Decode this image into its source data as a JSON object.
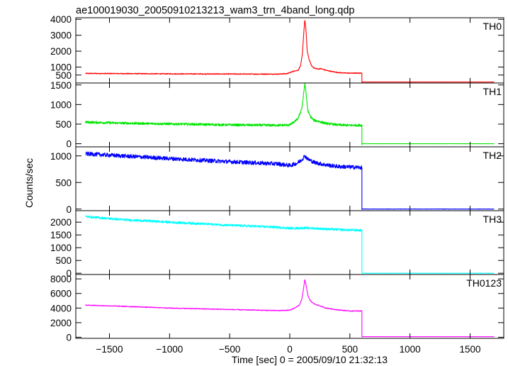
{
  "chart_data": {
    "type": "line",
    "title": "ae100019030_20050910213213_wam3_trn_4band_long.qdp",
    "xlabel": "Time [sec] 0 = 2005/09/10 21:32:13",
    "ylabel": "Counts/sec",
    "xlim": [
      -1780,
      1780
    ],
    "xticks": [
      -1500,
      -1000,
      -500,
      0,
      500,
      1000,
      1500
    ],
    "xtick_labels": [
      "−1500",
      "−1000",
      "−500",
      "0",
      "500",
      "1000",
      "1500"
    ],
    "x_range_of_data": [
      -1700,
      1700
    ],
    "grid": false,
    "panels": [
      {
        "name": "TH0",
        "color": "#ff0000",
        "ylim": [
          0,
          4100
        ],
        "yticks": [
          500,
          1000,
          2000,
          3000,
          4000
        ],
        "ytick_labels": [
          "500",
          "1000",
          "2000",
          "3000",
          "4000"
        ],
        "noise": 28,
        "series": [
          [
            -1700,
            600
          ],
          [
            -1400,
            590
          ],
          [
            -1000,
            575
          ],
          [
            -500,
            565
          ],
          [
            -100,
            560
          ],
          [
            -20,
            590
          ],
          [
            0,
            650
          ],
          [
            40,
            760
          ],
          [
            70,
            800
          ],
          [
            90,
            1100
          ],
          [
            105,
            1800
          ],
          [
            115,
            3000
          ],
          [
            125,
            4000
          ],
          [
            135,
            3300
          ],
          [
            145,
            2000
          ],
          [
            160,
            1500
          ],
          [
            180,
            1100
          ],
          [
            200,
            950
          ],
          [
            230,
            880
          ],
          [
            260,
            900
          ],
          [
            300,
            800
          ],
          [
            350,
            720
          ],
          [
            400,
            660
          ],
          [
            450,
            630
          ],
          [
            500,
            620
          ],
          [
            598,
            620
          ],
          [
            600,
            60
          ],
          [
            1700,
            60
          ]
        ]
      },
      {
        "name": "TH1",
        "color": "#00e600",
        "ylim": [
          -80,
          1550
        ],
        "yticks": [
          0,
          500,
          1000,
          1500
        ],
        "ytick_labels": [
          "0",
          "500",
          "1000",
          "1500"
        ],
        "noise": 30,
        "series": [
          [
            -1700,
            550
          ],
          [
            -1400,
            525
          ],
          [
            -1000,
            505
          ],
          [
            -500,
            480
          ],
          [
            -100,
            470
          ],
          [
            0,
            480
          ],
          [
            40,
            560
          ],
          [
            70,
            650
          ],
          [
            100,
            900
          ],
          [
            115,
            1250
          ],
          [
            125,
            1550
          ],
          [
            135,
            1300
          ],
          [
            150,
            850
          ],
          [
            170,
            700
          ],
          [
            200,
            600
          ],
          [
            250,
            560
          ],
          [
            300,
            520
          ],
          [
            400,
            480
          ],
          [
            500,
            470
          ],
          [
            598,
            470
          ],
          [
            600,
            0
          ],
          [
            1700,
            0
          ]
        ]
      },
      {
        "name": "TH2",
        "color": "#0000ff",
        "ylim": [
          -30,
          1170
        ],
        "yticks": [
          0,
          500,
          1000
        ],
        "ytick_labels": [
          "0",
          "500",
          "1000"
        ],
        "noise": 38,
        "series": [
          [
            -1700,
            1040
          ],
          [
            -1400,
            1000
          ],
          [
            -1000,
            950
          ],
          [
            -500,
            890
          ],
          [
            -100,
            850
          ],
          [
            0,
            820
          ],
          [
            60,
            860
          ],
          [
            100,
            930
          ],
          [
            125,
            1000
          ],
          [
            150,
            940
          ],
          [
            200,
            880
          ],
          [
            300,
            830
          ],
          [
            400,
            800
          ],
          [
            500,
            790
          ],
          [
            598,
            780
          ],
          [
            600,
            0
          ],
          [
            1700,
            0
          ]
        ]
      },
      {
        "name": "TH3",
        "color": "#00ffff",
        "ylim": [
          -50,
          2450
        ],
        "yticks": [
          0,
          500,
          1000,
          1500,
          2000
        ],
        "ytick_labels": [
          "0",
          "500",
          "1000",
          "1500",
          "2000"
        ],
        "noise": 45,
        "series": [
          [
            -1700,
            2220
          ],
          [
            -1400,
            2100
          ],
          [
            -1000,
            2000
          ],
          [
            -500,
            1880
          ],
          [
            -100,
            1800
          ],
          [
            0,
            1760
          ],
          [
            100,
            1770
          ],
          [
            200,
            1760
          ],
          [
            300,
            1730
          ],
          [
            400,
            1710
          ],
          [
            500,
            1690
          ],
          [
            598,
            1680
          ],
          [
            600,
            0
          ],
          [
            1700,
            0
          ]
        ]
      },
      {
        "name": "TH0123",
        "color": "#ff00ff",
        "ylim": [
          -150,
          8600
        ],
        "yticks": [
          0,
          2000,
          4000,
          6000,
          8000
        ],
        "ytick_labels": [
          "0",
          "2000",
          "4000",
          "6000",
          "8000"
        ],
        "noise": 55,
        "series": [
          [
            -1700,
            4400
          ],
          [
            -1400,
            4250
          ],
          [
            -1000,
            4000
          ],
          [
            -500,
            3800
          ],
          [
            -100,
            3650
          ],
          [
            0,
            3700
          ],
          [
            40,
            4000
          ],
          [
            80,
            4400
          ],
          [
            100,
            5200
          ],
          [
            115,
            6700
          ],
          [
            125,
            7900
          ],
          [
            135,
            7200
          ],
          [
            150,
            5800
          ],
          [
            170,
            5000
          ],
          [
            200,
            4600
          ],
          [
            250,
            4300
          ],
          [
            300,
            4000
          ],
          [
            400,
            3750
          ],
          [
            500,
            3600
          ],
          [
            598,
            3600
          ],
          [
            600,
            80
          ],
          [
            1700,
            80
          ]
        ]
      }
    ]
  }
}
